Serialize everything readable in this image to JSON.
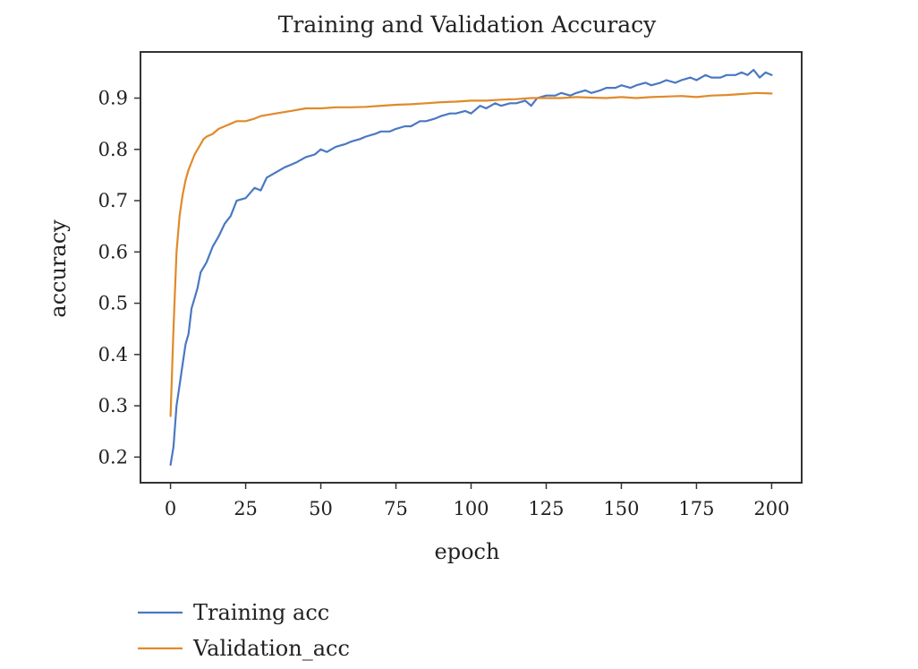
{
  "chart_data": {
    "type": "line",
    "title": "Training and Validation Accuracy",
    "xlabel": "epoch",
    "ylabel": "accuracy",
    "xlim": [
      -10,
      210
    ],
    "ylim": [
      0.15,
      0.99
    ],
    "xticks": [
      0,
      25,
      50,
      75,
      100,
      125,
      150,
      175,
      200
    ],
    "xtick_labels": [
      "0",
      "25",
      "50",
      "75",
      "100",
      "125",
      "150",
      "175",
      "200"
    ],
    "yticks": [
      0.2,
      0.3,
      0.4,
      0.5,
      0.6,
      0.7,
      0.8,
      0.9
    ],
    "ytick_labels": [
      "0.2",
      "0.3",
      "0.4",
      "0.5",
      "0.6",
      "0.7",
      "0.8",
      "0.9"
    ],
    "grid": false,
    "legend_position": "bottom-left",
    "series": [
      {
        "name": "Training acc",
        "color": "#4a78c2",
        "x": [
          0,
          1,
          2,
          3,
          4,
          5,
          6,
          7,
          8,
          9,
          10,
          12,
          14,
          16,
          18,
          20,
          22,
          25,
          28,
          30,
          32,
          35,
          38,
          40,
          42,
          45,
          48,
          50,
          52,
          55,
          58,
          60,
          63,
          65,
          68,
          70,
          73,
          75,
          78,
          80,
          83,
          85,
          88,
          90,
          93,
          95,
          98,
          100,
          103,
          105,
          108,
          110,
          113,
          115,
          118,
          120,
          122,
          125,
          128,
          130,
          133,
          135,
          138,
          140,
          143,
          145,
          148,
          150,
          153,
          155,
          158,
          160,
          163,
          165,
          168,
          170,
          173,
          175,
          178,
          180,
          183,
          185,
          188,
          190,
          192,
          194,
          196,
          198,
          200
        ],
        "y": [
          0.185,
          0.22,
          0.3,
          0.34,
          0.38,
          0.42,
          0.44,
          0.49,
          0.51,
          0.53,
          0.56,
          0.58,
          0.61,
          0.63,
          0.655,
          0.67,
          0.7,
          0.705,
          0.725,
          0.72,
          0.745,
          0.755,
          0.765,
          0.77,
          0.775,
          0.785,
          0.79,
          0.8,
          0.795,
          0.805,
          0.81,
          0.815,
          0.82,
          0.825,
          0.83,
          0.835,
          0.835,
          0.84,
          0.845,
          0.845,
          0.855,
          0.855,
          0.86,
          0.865,
          0.87,
          0.87,
          0.875,
          0.87,
          0.885,
          0.88,
          0.89,
          0.885,
          0.89,
          0.89,
          0.895,
          0.885,
          0.9,
          0.905,
          0.905,
          0.91,
          0.905,
          0.91,
          0.915,
          0.91,
          0.915,
          0.92,
          0.92,
          0.925,
          0.92,
          0.925,
          0.93,
          0.925,
          0.93,
          0.935,
          0.93,
          0.935,
          0.94,
          0.935,
          0.945,
          0.94,
          0.94,
          0.945,
          0.945,
          0.95,
          0.945,
          0.955,
          0.94,
          0.95,
          0.945
        ]
      },
      {
        "name": "Validation_acc",
        "color": "#e08a2a",
        "x": [
          0,
          1,
          2,
          3,
          4,
          5,
          6,
          7,
          8,
          9,
          10,
          11,
          12,
          14,
          16,
          18,
          20,
          22,
          25,
          28,
          30,
          35,
          40,
          45,
          50,
          55,
          60,
          65,
          70,
          75,
          80,
          85,
          90,
          95,
          100,
          105,
          110,
          115,
          120,
          125,
          130,
          135,
          140,
          145,
          150,
          155,
          160,
          165,
          170,
          175,
          180,
          185,
          190,
          195,
          200
        ],
        "y": [
          0.28,
          0.45,
          0.6,
          0.67,
          0.71,
          0.74,
          0.76,
          0.775,
          0.79,
          0.8,
          0.81,
          0.82,
          0.825,
          0.83,
          0.84,
          0.845,
          0.85,
          0.855,
          0.855,
          0.86,
          0.865,
          0.87,
          0.875,
          0.88,
          0.88,
          0.882,
          0.882,
          0.883,
          0.885,
          0.887,
          0.888,
          0.89,
          0.892,
          0.893,
          0.895,
          0.895,
          0.897,
          0.898,
          0.9,
          0.9,
          0.9,
          0.902,
          0.901,
          0.9,
          0.902,
          0.9,
          0.902,
          0.903,
          0.904,
          0.902,
          0.905,
          0.906,
          0.908,
          0.91,
          0.909
        ]
      }
    ]
  }
}
